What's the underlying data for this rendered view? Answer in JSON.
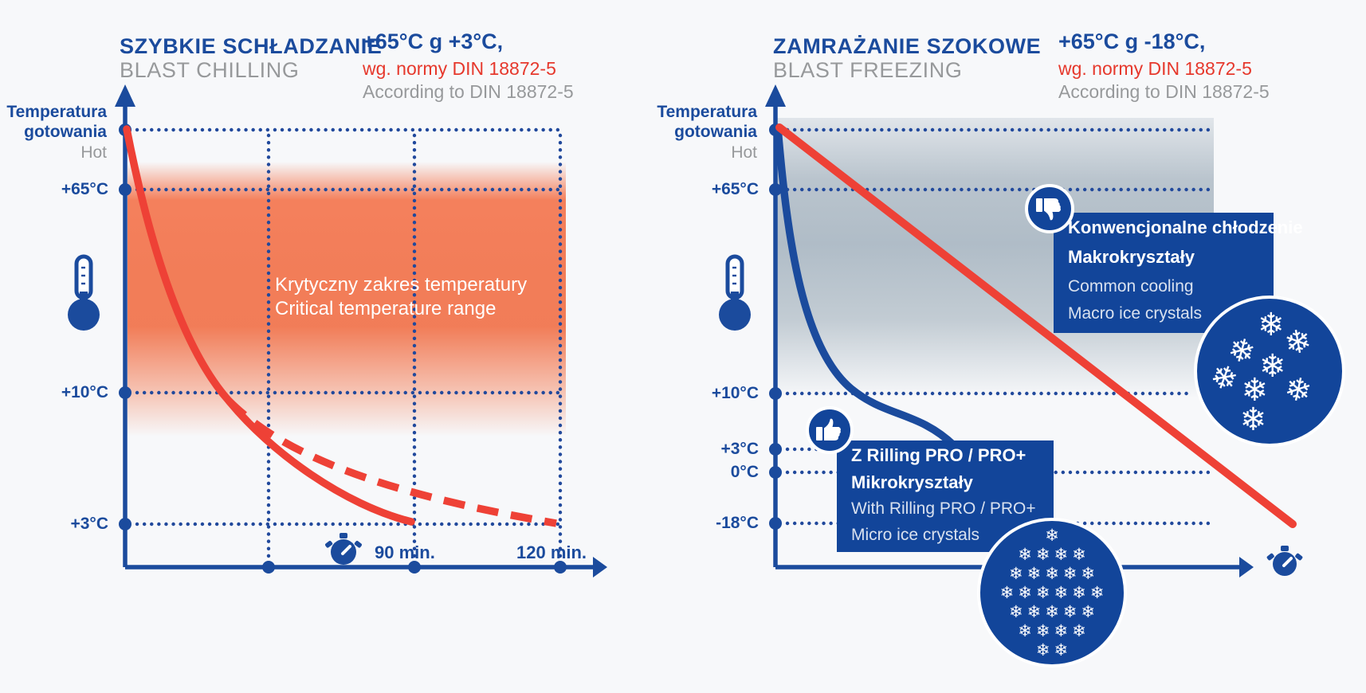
{
  "colors": {
    "blue": "#1b4b9d",
    "red": "#ee4136",
    "text_gray": "#97999b",
    "box_blue": "#12459a",
    "orange_band": "#f37049",
    "gray_band": "#aebbc6",
    "background": "#f7f8fa",
    "white": "#ffffff"
  },
  "chilling": {
    "title_pl": "SZYBKIE SCHŁADZANIE",
    "title_en": "BLAST CHILLING",
    "range": "+65°C g +3°C,",
    "norm_pl": "wg. normy DIN 18872-5",
    "norm_en": "According to DIN 18872-5",
    "axis_label_line1": "Temperatura",
    "axis_label_line2": "gotowania",
    "axis_label_en": "Hot",
    "ticks": {
      "t65": "+65°C",
      "t10": "+10°C",
      "t3": "+3°C"
    },
    "x_ticks": {
      "t90": "90 min.",
      "t120": "120 min."
    },
    "band_pl": "Krytyczny zakres temperatury",
    "band_en": "Critical temperature range"
  },
  "freezing": {
    "title_pl": "ZAMRAŻANIE SZOKOWE",
    "title_en": "BLAST FREEZING",
    "range": "+65°C g -18°C,",
    "norm_pl": "wg. normy DIN 18872-5",
    "norm_en": "According to DIN 18872-5",
    "axis_label_line1": "Temperatura",
    "axis_label_line2": "gotowania",
    "axis_label_en": "Hot",
    "ticks": {
      "t65": "+65°C",
      "t10": "+10°C",
      "t3": "+3°C",
      "t0": "0°C",
      "tm18": "-18°C"
    },
    "callout_bad": {
      "line1": "Konwencjonalne chłodzenie",
      "line2": "Makrokryształy",
      "line3": "Common cooling",
      "line4": "Macro ice crystals"
    },
    "callout_good": {
      "line1": "Z Rilling PRO / PRO+",
      "line2": "Mikrokryształy",
      "line3": "With Rilling PRO / PRO+",
      "line4": "Micro ice crystals"
    }
  },
  "icons": {
    "snowflake": "❄",
    "thermometer": "thermometer-icon",
    "stopwatch": "stopwatch-icon",
    "thumb_up": "thumbs-up-icon",
    "thumb_down": "thumbs-down-icon",
    "macro_flakes": [
      [
        42,
        8,
        0
      ],
      [
        22,
        26,
        15
      ],
      [
        60,
        20,
        -10
      ],
      [
        43,
        36,
        0
      ],
      [
        10,
        44,
        20
      ],
      [
        31,
        52,
        0
      ],
      [
        60,
        52,
        12
      ],
      [
        30,
        72,
        0
      ]
    ],
    "micro_rows": [
      1,
      4,
      5,
      6,
      5,
      4,
      2
    ]
  },
  "chart_data": [
    {
      "type": "line",
      "title": "SZYBKIE SCHŁADZANIE / BLAST CHILLING",
      "subtitle": "+65°C g +3°C, wg. normy DIN 18872-5 / According to DIN 18872-5",
      "xlabel": "time (min)",
      "ylabel": "Temperatura gotowania / Hot (°C)",
      "x_ticks": [
        "90 min.",
        "120 min."
      ],
      "y_ticks": [
        "Hot",
        "+65°C",
        "+10°C",
        "+3°C"
      ],
      "grid": "dotted reference lines at Hot, +65, +10, +3 and at 90/120 min",
      "legend_position": "none",
      "annotations": [
        "Krytyczny zakres temperatury / Critical temperature range (shaded band between ~+65°C and ~+10°C)"
      ],
      "series": [
        {
          "name": "Blast chilling (solid red)",
          "color": "#ee4136",
          "style": "solid",
          "points_min_C": [
            [
              0,
              90
            ],
            [
              12,
              65
            ],
            [
              50,
              10
            ],
            [
              90,
              3
            ]
          ]
        },
        {
          "name": "Conventional cooling (dashed red)",
          "color": "#ee4136",
          "style": "dashed",
          "points_min_C": [
            [
              50,
              10
            ],
            [
              90,
              5.5
            ],
            [
              120,
              3
            ]
          ]
        }
      ]
    },
    {
      "type": "line",
      "title": "ZAMRAŻANIE SZOKOWE / BLAST FREEZING",
      "subtitle": "+65°C g -18°C, wg. normy DIN 18872-5 / According to DIN 18872-5",
      "xlabel": "time",
      "ylabel": "Temperatura gotowania / Hot (°C)",
      "x_ticks": [],
      "y_ticks": [
        "Hot",
        "+65°C",
        "+10°C",
        "+3°C",
        "0°C",
        "-18°C"
      ],
      "grid": "dotted reference lines at Hot, +65, +10, +3, 0, -18",
      "legend_position": "inline callout boxes",
      "annotations": [
        "Z Rilling PRO / PRO+ — Mikrokryształy / With Rilling PRO / PRO+ — Micro ice crystals (thumbs-up, fast blue curve)",
        "Konwencjonalne chłodzenie — Makrokryształy / Common cooling — Macro ice crystals (thumbs-down, slow red line)"
      ],
      "series": [
        {
          "name": "Blast freezing with Rilling PRO / PRO+ (blue)",
          "color": "#1b4b9d",
          "style": "solid",
          "points_rel_C": [
            [
              0,
              90
            ],
            [
              0.1,
              40
            ],
            [
              0.25,
              5
            ],
            [
              0.45,
              -18
            ]
          ]
        },
        {
          "name": "Common cooling (red)",
          "color": "#ee4136",
          "style": "solid",
          "points_rel_C": [
            [
              0,
              90
            ],
            [
              1.0,
              -18
            ]
          ]
        }
      ]
    }
  ]
}
